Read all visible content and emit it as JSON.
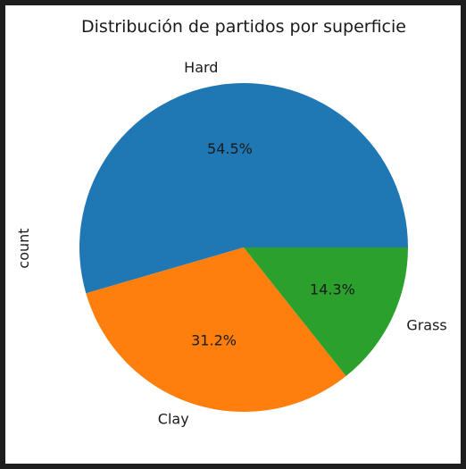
{
  "chart_data": {
    "type": "pie",
    "title": "Distribución de partidos por superficie",
    "ylabel": "count",
    "startangle": 0,
    "counterclockwise": true,
    "slices": [
      {
        "label": "Hard",
        "percent": 54.5,
        "pct_text": "54.5%",
        "color": "#1f77b4"
      },
      {
        "label": "Clay",
        "percent": 31.2,
        "pct_text": "31.2%",
        "color": "#ff7f0e"
      },
      {
        "label": "Grass",
        "percent": 14.3,
        "pct_text": "14.3%",
        "color": "#2ca02c"
      }
    ]
  }
}
